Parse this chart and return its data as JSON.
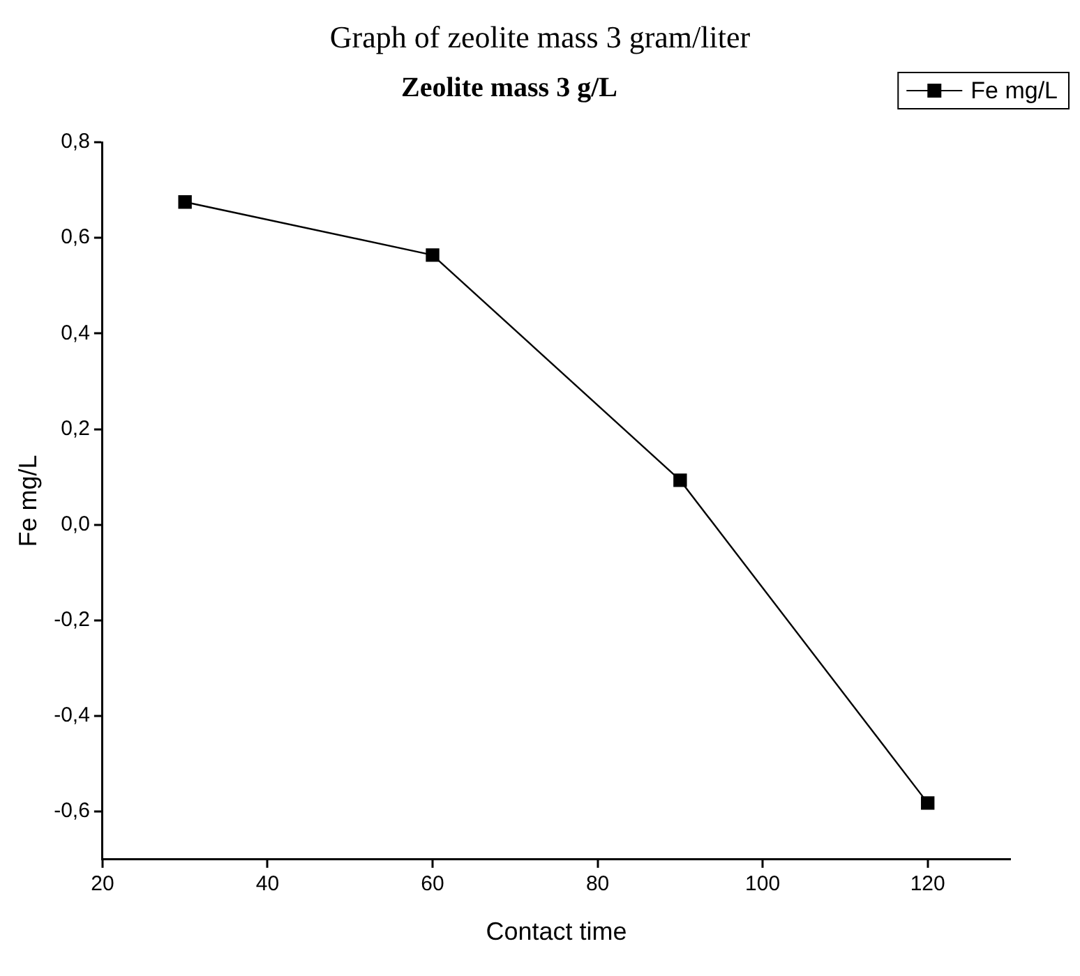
{
  "chart_data": {
    "type": "line",
    "title": "Graph of zeolite mass 3 gram/liter",
    "subtitle": "Zeolite mass 3 g/L",
    "xlabel": "Contact time",
    "ylabel": "Fe mg/L",
    "x": [
      30,
      60,
      90,
      120
    ],
    "series": [
      {
        "name": "Fe mg/L",
        "color": "#000000",
        "values": [
          0.675,
          0.564,
          0.093,
          -0.582
        ]
      }
    ],
    "xlim": [
      20,
      130
    ],
    "xticks": [
      20,
      40,
      60,
      80,
      100,
      120
    ],
    "ylim": [
      -0.7,
      0.8
    ],
    "yticks": [
      {
        "value": -0.6,
        "label": "-0,6"
      },
      {
        "value": -0.4,
        "label": "-0,4"
      },
      {
        "value": -0.2,
        "label": "-0,2"
      },
      {
        "value": 0,
        "label": "0,0"
      },
      {
        "value": 0.2,
        "label": "0,2"
      },
      {
        "value": 0.4,
        "label": "0,4"
      },
      {
        "value": 0.6,
        "label": "0,6"
      },
      {
        "value": 0.8,
        "label": "0,8"
      }
    ],
    "grid": false,
    "legend": "top right",
    "marker": "square",
    "line_style": "solid"
  }
}
